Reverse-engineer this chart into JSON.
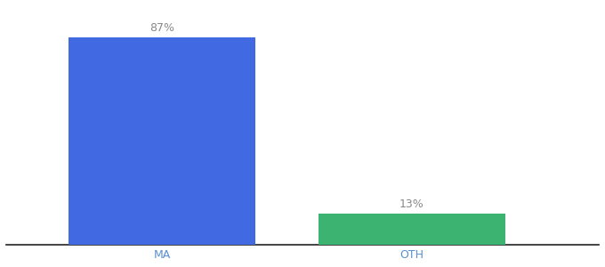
{
  "categories": [
    "MA",
    "OTH"
  ],
  "values": [
    87,
    13
  ],
  "bar_colors": [
    "#4169e1",
    "#3cb371"
  ],
  "label_texts": [
    "87%",
    "13%"
  ],
  "background_color": "#ffffff",
  "bar_width": 0.6,
  "xlim": [
    -0.1,
    1.8
  ],
  "ylim": [
    0,
    100
  ],
  "label_fontsize": 9,
  "tick_fontsize": 9,
  "tick_color": "#5a8fd0",
  "label_color": "#888888",
  "axis_line_color": "#222222"
}
